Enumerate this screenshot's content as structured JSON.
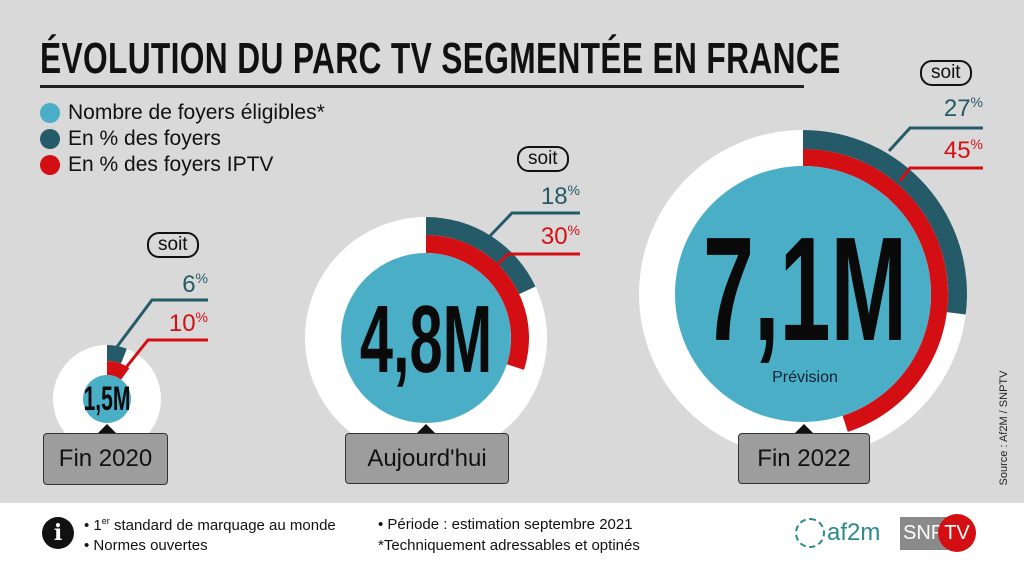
{
  "title": "ÉVOLUTION DU PARC TV SEGMENTÉE EN FRANCE",
  "colors": {
    "eligible": "#4aaec7",
    "pct_foyers": "#255b68",
    "pct_iptv": "#d40f14",
    "ring": "#ffffff",
    "background": "#d9d9d9"
  },
  "legend": [
    {
      "label": "Nombre de foyers éligibles*",
      "color": "#4aaec7"
    },
    {
      "label": "En % des foyers",
      "color": "#255b68"
    },
    {
      "label": "En % des foyers IPTV",
      "color": "#d40f14"
    }
  ],
  "chart_data": {
    "type": "donut",
    "title": "ÉVOLUTION DU PARC TV SEGMENTÉE EN FRANCE",
    "categories": [
      "Fin 2020",
      "Aujourd'hui",
      "Fin 2022"
    ],
    "series": [
      {
        "name": "Nombre de foyers éligibles*",
        "values": [
          1.5,
          4.8,
          7.1
        ],
        "labels": [
          "1,5M",
          "4,8M",
          "7,1M"
        ]
      },
      {
        "name": "En % des foyers",
        "values": [
          6,
          18,
          27
        ]
      },
      {
        "name": "En % des foyers IPTV",
        "values": [
          10,
          30,
          45
        ]
      }
    ],
    "soit_label": "soit",
    "pct_sign": "%",
    "annotation": "Prévision"
  },
  "source": "Source : Af2M / SNPTV",
  "footer": {
    "bullet1_sup": "er",
    "bullet1_pre": "• 1",
    "bullet1_post": " standard de marquage au monde",
    "bullet2": "• Normes ouvertes",
    "bullet3": "• Période : estimation septembre 2021",
    "bullet4": "*Techniquement adressables et optinés",
    "info_icon": "i",
    "logo_af2m": "af2m",
    "logo_snp": "SNP",
    "logo_tv": "TV"
  }
}
